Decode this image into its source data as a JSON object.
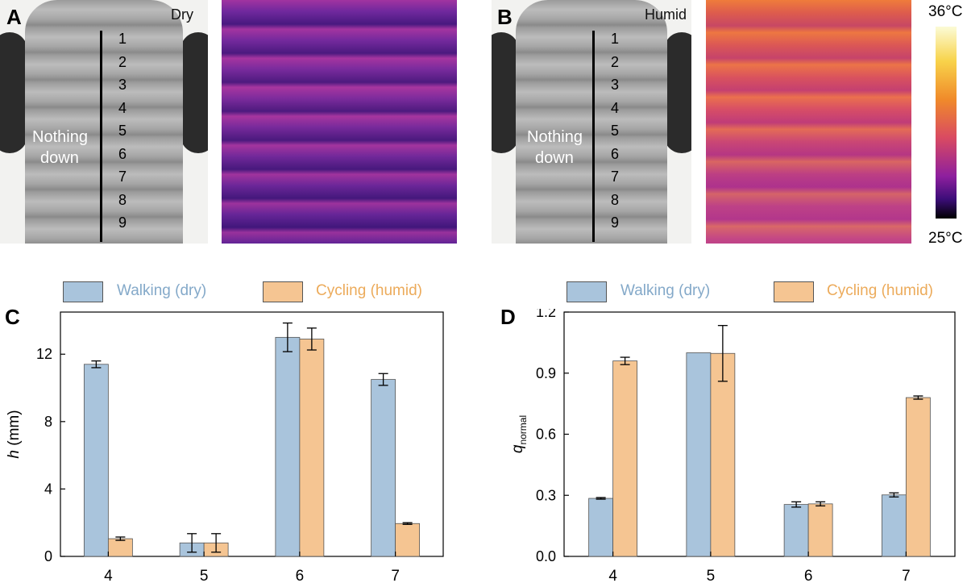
{
  "panels": {
    "A": {
      "letter": "A",
      "condition": "Dry"
    },
    "B": {
      "letter": "B",
      "condition": "Humid"
    },
    "C": {
      "letter": "C"
    },
    "D": {
      "letter": "D"
    }
  },
  "photo_labels": {
    "segments": [
      "1",
      "2",
      "3",
      "4",
      "5",
      "6",
      "7",
      "8",
      "9"
    ],
    "nothing": "Nothing",
    "down": "down"
  },
  "colorbar": {
    "max": "36°C",
    "min": "25°C"
  },
  "colors": {
    "walking": "#a9c4dc",
    "cycling": "#f5c592",
    "walking_text": "#84a9c9",
    "cycling_text": "#ecab5b"
  },
  "chart_data": [
    {
      "type": "bar",
      "categories": [
        "4",
        "5",
        "6",
        "7"
      ],
      "series": [
        {
          "name": "Walking (dry)",
          "values": [
            11.4,
            0.8,
            13.0,
            10.5
          ],
          "errors": [
            0.2,
            0.55,
            0.85,
            0.35
          ]
        },
        {
          "name": "Cycling (humid)",
          "values": [
            1.05,
            0.8,
            12.9,
            1.95
          ],
          "errors": [
            0.1,
            0.55,
            0.65,
            0.05
          ]
        }
      ],
      "ylabel_var": "h",
      "ylabel_unit": " (mm)",
      "ylim": [
        0,
        14.5
      ],
      "yticks": [
        0,
        4,
        8,
        12
      ],
      "legend": "top"
    },
    {
      "type": "bar",
      "categories": [
        "4",
        "5",
        "6",
        "7"
      ],
      "series": [
        {
          "name": "Walking (dry)",
          "values": [
            0.285,
            1.0,
            0.255,
            0.302
          ],
          "errors": [
            0.004,
            0.0,
            0.013,
            0.01
          ]
        },
        {
          "name": "Cycling (humid)",
          "values": [
            0.96,
            0.997,
            0.258,
            0.78
          ],
          "errors": [
            0.018,
            0.137,
            0.01,
            0.008
          ]
        }
      ],
      "ylabel_var": "q",
      "ylabel_sub": "normal",
      "ylim": [
        0,
        1.2
      ],
      "yticks": [
        "0.0",
        "0.3",
        "0.6",
        "0.9",
        "1.2"
      ],
      "legend": "top"
    }
  ]
}
